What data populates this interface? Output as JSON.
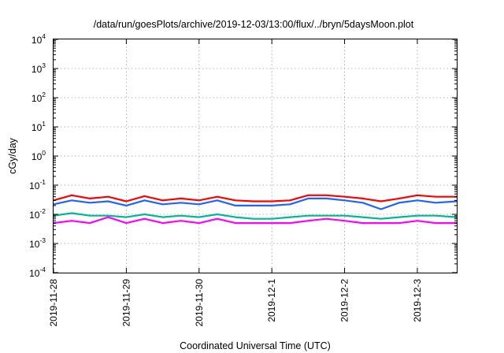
{
  "chart_data": {
    "type": "line",
    "title": "/data/run/goesPlots/archive/2019-12-03/13:00/flux/../bryn/5daysMoon.plot",
    "xlabel": "Coordinated Universal Time (UTC)",
    "ylabel": "cGy/day",
    "yscale": "log",
    "ylim": [
      0.0001,
      10000
    ],
    "y_ticks": [
      {
        "base": "10",
        "exp": "-4"
      },
      {
        "base": "10",
        "exp": "-3"
      },
      {
        "base": "10",
        "exp": "-2"
      },
      {
        "base": "10",
        "exp": "-1"
      },
      {
        "base": "10",
        "exp": "0"
      },
      {
        "base": "10",
        "exp": "1"
      },
      {
        "base": "10",
        "exp": "2"
      },
      {
        "base": "10",
        "exp": "3"
      },
      {
        "base": "10",
        "exp": "4"
      }
    ],
    "x_range_days": [
      "2019-11-28",
      "2019-12-03 13:00"
    ],
    "x_ticks": [
      "2019-11-28",
      "2019-11-29",
      "2019-11-30",
      "2019-12-1",
      "2019-12-2",
      "2019-12-3"
    ],
    "grid": true,
    "series": [
      {
        "color": "#ff0000",
        "x": [
          "2019-11-28 00:00",
          "2019-11-28 06:00",
          "2019-11-28 12:00",
          "2019-11-28 18:00",
          "2019-11-29 00:00",
          "2019-11-29 06:00",
          "2019-11-29 12:00",
          "2019-11-29 18:00",
          "2019-11-30 00:00",
          "2019-11-30 06:00",
          "2019-11-30 12:00",
          "2019-11-30 18:00",
          "2019-12-01 00:00",
          "2019-12-01 06:00",
          "2019-12-01 12:00",
          "2019-12-01 18:00",
          "2019-12-02 00:00",
          "2019-12-02 06:00",
          "2019-12-02 12:00",
          "2019-12-02 18:00",
          "2019-12-03 00:00",
          "2019-12-03 06:00",
          "2019-12-03 13:00"
        ],
        "y": [
          0.03,
          0.045,
          0.035,
          0.04,
          0.028,
          0.042,
          0.03,
          0.035,
          0.03,
          0.04,
          0.03,
          0.028,
          0.028,
          0.03,
          0.045,
          0.045,
          0.04,
          0.035,
          0.028,
          0.035,
          0.045,
          0.04,
          0.04
        ]
      },
      {
        "color": "#1e64ff",
        "x": [
          "2019-11-28 00:00",
          "2019-11-28 06:00",
          "2019-11-28 12:00",
          "2019-11-28 18:00",
          "2019-11-29 00:00",
          "2019-11-29 06:00",
          "2019-11-29 12:00",
          "2019-11-29 18:00",
          "2019-11-30 00:00",
          "2019-11-30 06:00",
          "2019-11-30 12:00",
          "2019-11-30 18:00",
          "2019-12-01 00:00",
          "2019-12-01 06:00",
          "2019-12-01 12:00",
          "2019-12-01 18:00",
          "2019-12-02 00:00",
          "2019-12-02 06:00",
          "2019-12-02 12:00",
          "2019-12-02 18:00",
          "2019-12-03 00:00",
          "2019-12-03 06:00",
          "2019-12-03 13:00"
        ],
        "y": [
          0.022,
          0.03,
          0.025,
          0.028,
          0.02,
          0.03,
          0.022,
          0.025,
          0.022,
          0.03,
          0.02,
          0.02,
          0.02,
          0.022,
          0.035,
          0.035,
          0.03,
          0.025,
          0.015,
          0.025,
          0.03,
          0.025,
          0.028
        ]
      },
      {
        "color": "#00b894",
        "x": [
          "2019-11-28 00:00",
          "2019-11-28 06:00",
          "2019-11-28 12:00",
          "2019-11-28 18:00",
          "2019-11-29 00:00",
          "2019-11-29 06:00",
          "2019-11-29 12:00",
          "2019-11-29 18:00",
          "2019-11-30 00:00",
          "2019-11-30 06:00",
          "2019-11-30 12:00",
          "2019-11-30 18:00",
          "2019-12-01 00:00",
          "2019-12-01 06:00",
          "2019-12-01 12:00",
          "2019-12-01 18:00",
          "2019-12-02 00:00",
          "2019-12-02 06:00",
          "2019-12-02 12:00",
          "2019-12-02 18:00",
          "2019-12-03 00:00",
          "2019-12-03 06:00",
          "2019-12-03 13:00"
        ],
        "y": [
          0.009,
          0.011,
          0.009,
          0.009,
          0.008,
          0.01,
          0.008,
          0.009,
          0.008,
          0.01,
          0.008,
          0.007,
          0.007,
          0.008,
          0.009,
          0.009,
          0.009,
          0.008,
          0.007,
          0.008,
          0.009,
          0.009,
          0.008
        ]
      },
      {
        "color": "#ff00ff",
        "x": [
          "2019-11-28 00:00",
          "2019-11-28 06:00",
          "2019-11-28 12:00",
          "2019-11-28 18:00",
          "2019-11-29 00:00",
          "2019-11-29 06:00",
          "2019-11-29 12:00",
          "2019-11-29 18:00",
          "2019-11-30 00:00",
          "2019-11-30 06:00",
          "2019-11-30 12:00",
          "2019-11-30 18:00",
          "2019-12-01 00:00",
          "2019-12-01 06:00",
          "2019-12-01 12:00",
          "2019-12-01 18:00",
          "2019-12-02 00:00",
          "2019-12-02 06:00",
          "2019-12-02 12:00",
          "2019-12-02 18:00",
          "2019-12-03 00:00",
          "2019-12-03 06:00",
          "2019-12-03 13:00"
        ],
        "y": [
          0.005,
          0.006,
          0.005,
          0.008,
          0.005,
          0.007,
          0.005,
          0.006,
          0.005,
          0.007,
          0.005,
          0.005,
          0.005,
          0.005,
          0.006,
          0.007,
          0.006,
          0.005,
          0.005,
          0.005,
          0.006,
          0.005,
          0.005
        ]
      }
    ]
  }
}
